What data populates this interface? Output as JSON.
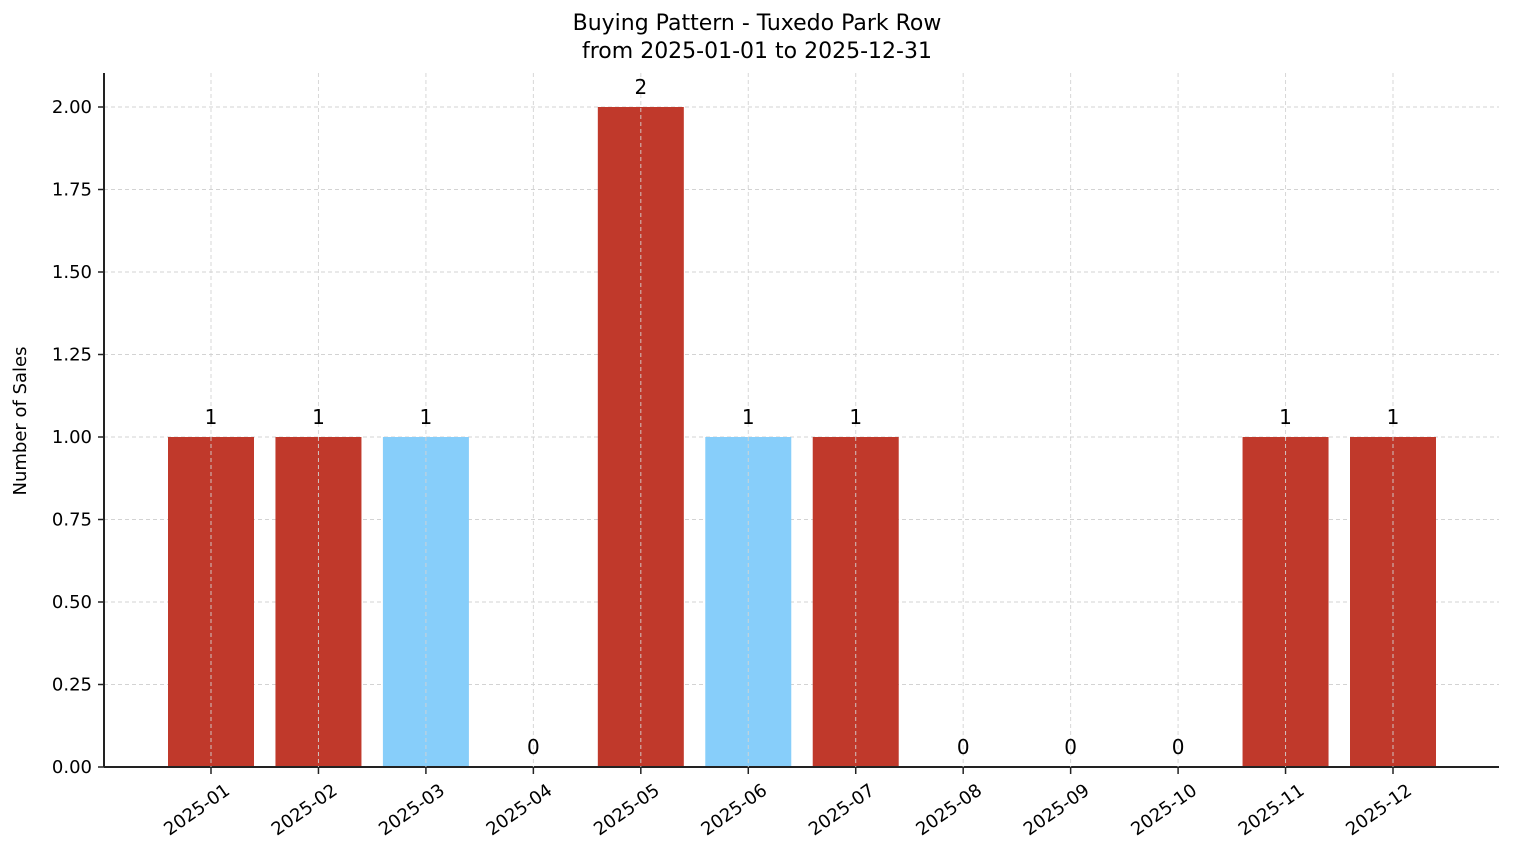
{
  "chart_data": {
    "type": "bar",
    "title": "Buying Pattern - Tuxedo Park Row",
    "subtitle": "from 2025-01-01 to 2025-12-31",
    "xlabel": "",
    "ylabel": "Number of Sales",
    "ylim": [
      0,
      2.1
    ],
    "yticks": [
      "0.00",
      "0.25",
      "0.50",
      "0.75",
      "1.00",
      "1.25",
      "1.50",
      "1.75",
      "2.00"
    ],
    "grid": true,
    "categories": [
      "2025-01",
      "2025-02",
      "2025-03",
      "2025-04",
      "2025-05",
      "2025-06",
      "2025-07",
      "2025-08",
      "2025-09",
      "2025-10",
      "2025-11",
      "2025-12"
    ],
    "values": [
      1,
      1,
      1,
      0,
      2,
      1,
      1,
      0,
      0,
      0,
      1,
      1
    ],
    "bar_colors": [
      "#c0392b",
      "#c0392b",
      "#87cefa",
      "#c0392b",
      "#c0392b",
      "#87cefa",
      "#c0392b",
      "#c0392b",
      "#c0392b",
      "#c0392b",
      "#c0392b",
      "#c0392b"
    ],
    "data_labels": [
      "1",
      "1",
      "1",
      "0",
      "2",
      "1",
      "1",
      "0",
      "0",
      "0",
      "1",
      "1"
    ]
  },
  "colors": {
    "primary": "#c0392b",
    "highlight": "#87cefa",
    "grid": "#d3d3d3",
    "axis": "#222222"
  }
}
